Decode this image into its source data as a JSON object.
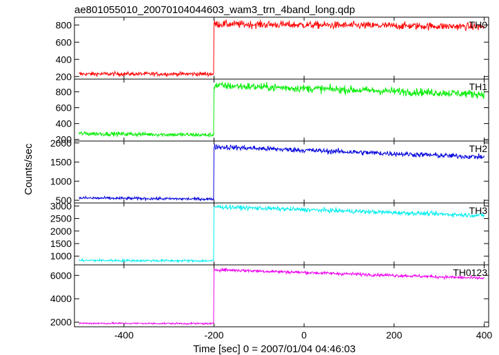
{
  "chart_data": {
    "type": "line",
    "title": "ae801055010_20070104044603_wam3_trn_4band_long.qdp",
    "xlabel": "Time [sec] 0 = 2007/01/04 04:46:03",
    "ylabel": "Counts/sec",
    "xlim": [
      -510,
      410
    ],
    "x_ticks": [
      -400,
      -200,
      0,
      200,
      400
    ],
    "step_time": -200,
    "grid": false,
    "series": [
      {
        "name": "TH0",
        "color": "#ff0000",
        "ylim": [
          170,
          890
        ],
        "y_ticks": [
          200,
          400,
          600,
          800
        ],
        "approx_levels": {
          "before": [
            230,
            230
          ],
          "after": [
            810,
            780
          ]
        },
        "noise": 22
      },
      {
        "name": "TH1",
        "color": "#00ee00",
        "ylim": [
          180,
          960
        ],
        "y_ticks": [
          200,
          400,
          600,
          800
        ],
        "approx_levels": {
          "before": [
            275,
            255
          ],
          "after": [
            880,
            770
          ]
        },
        "noise": 25
      },
      {
        "name": "TH2",
        "color": "#0000dd",
        "ylim": [
          430,
          2050
        ],
        "y_ticks": [
          500,
          1000,
          1500,
          2000
        ],
        "approx_levels": {
          "before": [
            560,
            530
          ],
          "after": [
            1900,
            1630
          ]
        },
        "noise": 35
      },
      {
        "name": "TH3",
        "color": "#00eeee",
        "ylim": [
          650,
          3120
        ],
        "y_ticks": [
          1000,
          1500,
          2000,
          2500,
          3000
        ],
        "approx_levels": {
          "before": [
            830,
            810
          ],
          "after": [
            2970,
            2620
          ]
        },
        "noise": 45
      },
      {
        "name": "TH0123",
        "color": "#ee00ee",
        "ylim": [
          1600,
          6900
        ],
        "y_ticks": [
          2000,
          4000,
          6000
        ],
        "approx_levels": {
          "before": [
            1900,
            1870
          ],
          "after": [
            6500,
            5750
          ]
        },
        "noise": 70
      }
    ]
  }
}
